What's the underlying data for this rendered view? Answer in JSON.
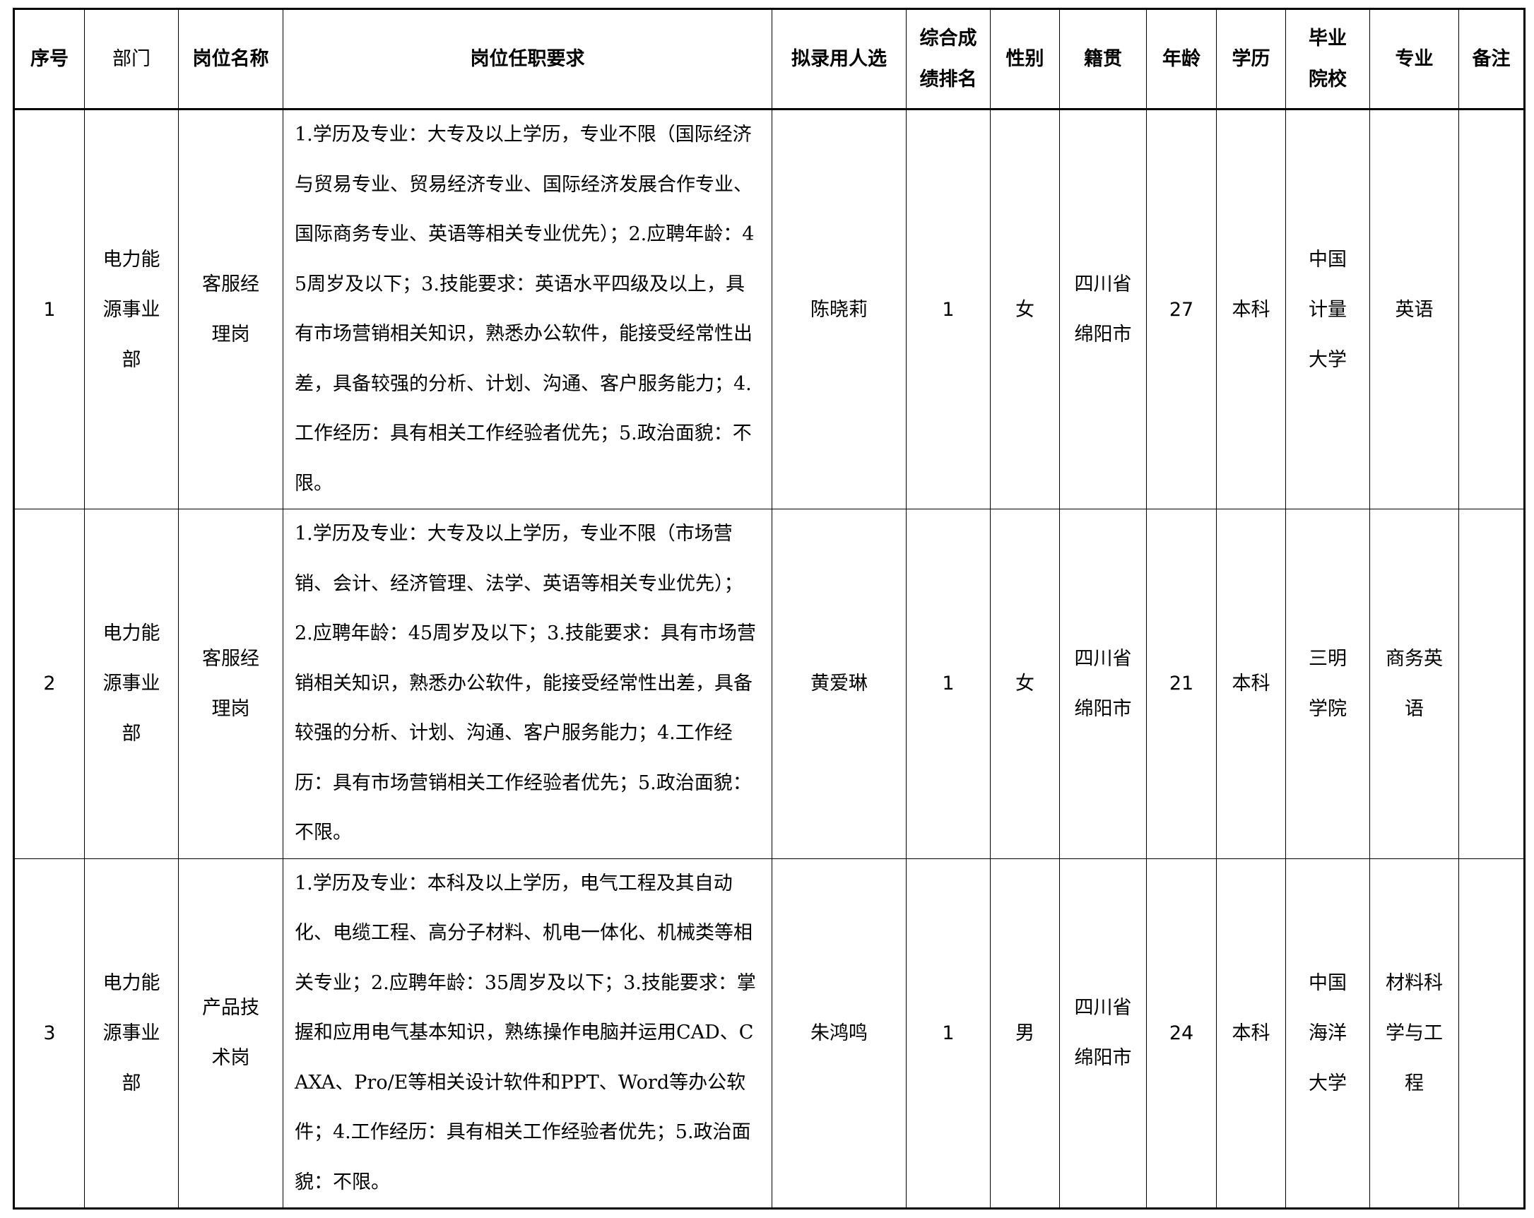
{
  "headers": [
    "序号",
    "部门",
    "岗位名称",
    "岗位任职要求",
    "拟录用人选",
    "综合成绩排名",
    "性别",
    "籍贯",
    "年龄",
    "学历",
    "毕业院校",
    "专业",
    "备注"
  ],
  "rows": [
    {
      "no": "1",
      "dept": "电力能源事业部",
      "position": "客服经理岗",
      "requirements": "1.学历及专业：大专及以上学历，专业不限（国际经济与贸易专业、贸易经济专业、国际经济发展合作专业、国际商务专业、英语等相关专业优先）；2.应聘年龄：45周岁及以下；3.技能要求：英语水平四级及以上，具有市场营销相关知识，熟悉办公软件，能接受经常性出差，具备较强的分析、计划、沟通、客户服务能力；4.工作经历：具有相关工作经验者优先；5.政治面貌：不限。",
      "candidate": "陈晓莉",
      "rank": "1",
      "gender": "女",
      "origin": "四川省绵阳市",
      "age": "27",
      "education": "本科",
      "school": "中国计量大学",
      "major": "英语",
      "note": ""
    },
    {
      "no": "2",
      "dept": "电力能源事业部",
      "position": "客服经理岗",
      "requirements": "1.学历及专业：大专及以上学历，专业不限（市场营销、会计、经济管理、法学、英语等相关专业优先）；2.应聘年龄：45周岁及以下；3.技能要求：具有市场营销相关知识，熟悉办公软件，能接受经常性出差，具备较强的分析、计划、沟通、客户服务能力；4.工作经历：具有市场营销相关工作经验者优先；5.政治面貌：不限。",
      "candidate": "黄爱琳",
      "rank": "1",
      "gender": "女",
      "origin": "四川省绵阳市",
      "age": "21",
      "education": "本科",
      "school": "三明学院",
      "major": "商务英语",
      "note": ""
    },
    {
      "no": "3",
      "dept": "电力能源事业部",
      "position": "产品技术岗",
      "requirements": "1.学历及专业：本科及以上学历，电气工程及其自动化、电缆工程、高分子材料、机电一体化、机械类等相关专业；2.应聘年龄：35周岁及以下；3.技能要求：掌握和应用电气基本知识，熟练操作电脑并运用CAD、CAXA、Pro/E等相关设计软件和PPT、Word等办公软件；4.工作经历：具有相关工作经验者优先；5.政治面貌：不限。",
      "candidate": "朱鸿鸣",
      "rank": "1",
      "gender": "男",
      "origin": "四川省绵阳市",
      "age": "24",
      "education": "本科",
      "school": "中国海洋大学",
      "major": "材料科学与工程",
      "note": ""
    }
  ]
}
